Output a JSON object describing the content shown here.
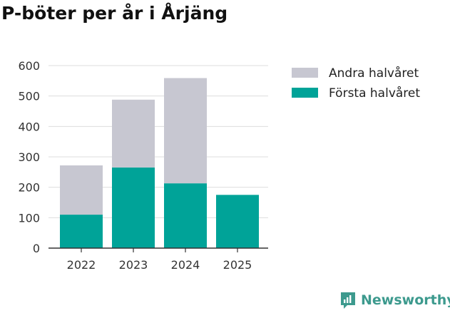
{
  "title": "P-böter per år i Årjäng",
  "brand": {
    "name": "Newsworthy",
    "icon": "newsworthy-logo-icon",
    "color": "#3d9a8e"
  },
  "chart_data": {
    "type": "bar",
    "stacked": true,
    "title": "P-böter per år i Årjäng",
    "xlabel": "",
    "ylabel": "",
    "categories": [
      "2022",
      "2023",
      "2024",
      "2025"
    ],
    "series": [
      {
        "name": "Första halvåret",
        "color": "#00a398",
        "values": [
          110,
          265,
          213,
          175
        ]
      },
      {
        "name": "Andra halvåret",
        "color": "#c7c7d1",
        "values": [
          162,
          223,
          346,
          0
        ]
      }
    ],
    "ylim": [
      0,
      600
    ],
    "yticks": [
      0,
      100,
      200,
      300,
      400,
      500,
      600
    ],
    "grid": true,
    "legend_position": "top-right",
    "legend_order": [
      "Andra halvåret",
      "Första halvåret"
    ]
  }
}
